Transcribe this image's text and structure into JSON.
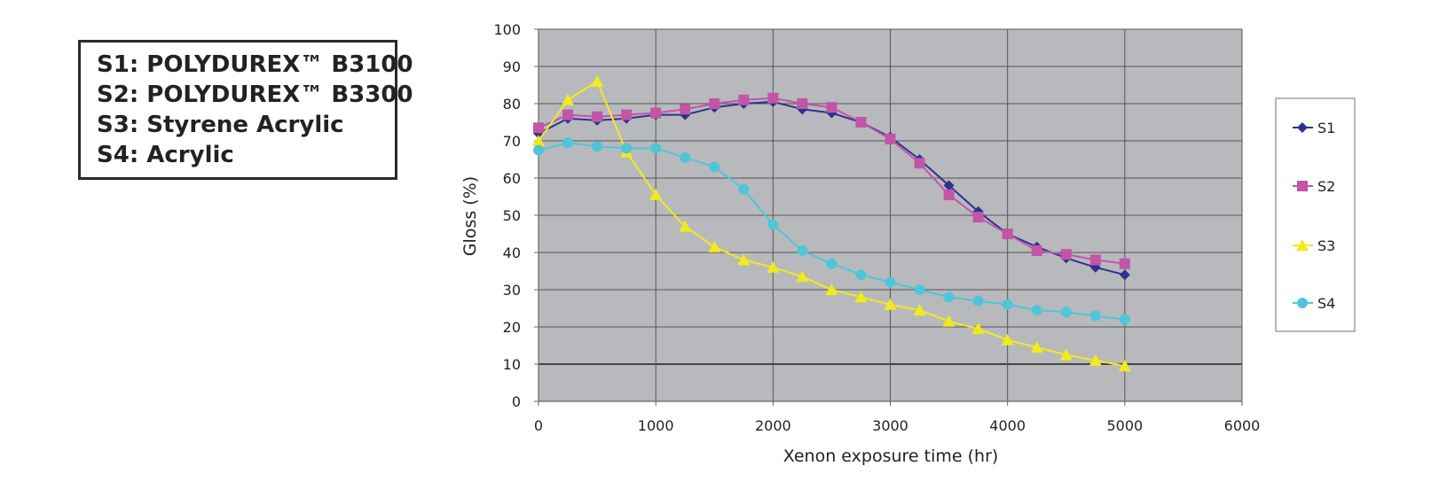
{
  "key_box": {
    "lines": [
      "S1: POLYDUREX™ B3100",
      "S2: POLYDUREX™ B3300",
      "S3: Styrene Acrylic",
      "S4: Acrylic"
    ]
  },
  "chart_data": {
    "type": "line",
    "title": "",
    "xlabel": "Xenon exposure time (hr)",
    "ylabel": "Gloss (%)",
    "xlim": [
      0,
      6000
    ],
    "ylim": [
      0,
      100
    ],
    "x_ticks": [
      0,
      1000,
      2000,
      3000,
      4000,
      5000,
      6000
    ],
    "y_ticks": [
      0,
      10,
      20,
      30,
      40,
      50,
      60,
      70,
      80,
      90,
      100
    ],
    "grid": true,
    "plot_background": "#b8b9bd",
    "legend_position": "right",
    "x": [
      0,
      250,
      500,
      750,
      1000,
      1250,
      1500,
      1750,
      2000,
      2250,
      2500,
      2750,
      3000,
      3250,
      3500,
      3750,
      4000,
      4250,
      4500,
      4750,
      5000
    ],
    "series": [
      {
        "name": "S1",
        "color": "#2e3192",
        "marker": "diamond",
        "values": [
          72,
          76,
          75.5,
          76,
          77,
          77,
          79,
          80,
          80.5,
          78.5,
          77.5,
          75,
          71,
          65,
          58,
          51,
          45,
          41.5,
          38.5,
          36,
          34
        ]
      },
      {
        "name": "S2",
        "color": "#c255a8",
        "marker": "square",
        "values": [
          73.5,
          77,
          76.5,
          77,
          77.5,
          78.5,
          80,
          81,
          81.5,
          80,
          79,
          75,
          70.5,
          64,
          55.5,
          49.5,
          45,
          40.5,
          39.5,
          38,
          37
        ]
      },
      {
        "name": "S3",
        "color": "#f2ea1d",
        "marker": "triangle",
        "values": [
          70,
          81,
          86,
          67,
          55.5,
          47,
          41.5,
          38,
          36,
          33.5,
          30,
          28,
          26,
          24.5,
          21.5,
          19.5,
          16.5,
          14.5,
          12.5,
          11,
          9.5
        ]
      },
      {
        "name": "S4",
        "color": "#4ec6d8",
        "marker": "circle",
        "values": [
          67.5,
          69.5,
          68.5,
          68,
          68,
          65.5,
          63,
          57,
          47.5,
          40.5,
          37,
          34,
          32,
          30,
          28,
          27,
          26,
          24.5,
          24,
          23,
          22
        ]
      }
    ]
  }
}
